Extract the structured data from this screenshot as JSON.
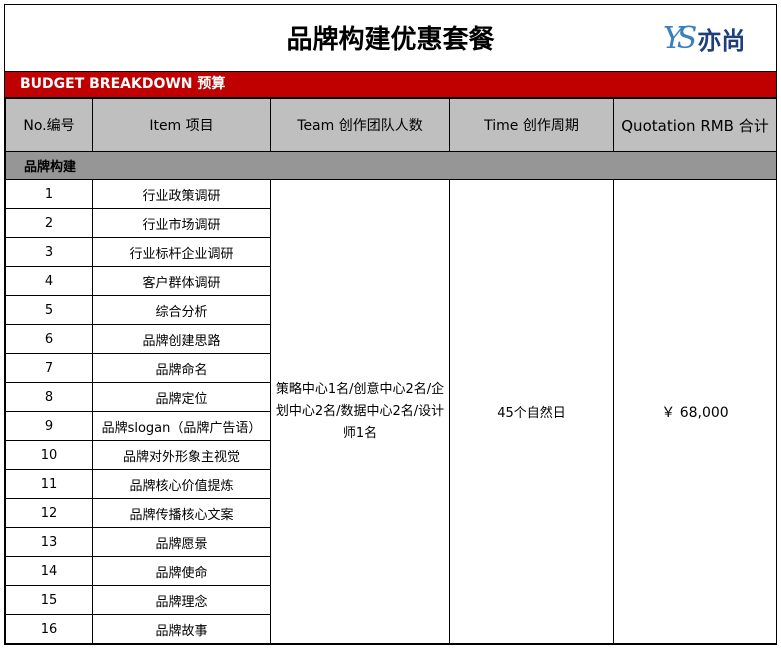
{
  "title": "品牌构建优惠套餐",
  "logo": {
    "mark": "YS",
    "text": "亦尚"
  },
  "band": "BUDGET BREAKDOWN 预算",
  "headers": [
    "No.编号",
    "Item 项目",
    "Team 创作团队人数",
    "Time 创作周期",
    "Quotation RMB 合计"
  ],
  "section": "品牌构建",
  "rows": [
    {
      "no": "1",
      "item": "行业政策调研"
    },
    {
      "no": "2",
      "item": "行业市场调研"
    },
    {
      "no": "3",
      "item": "行业标杆企业调研"
    },
    {
      "no": "4",
      "item": "客户群体调研"
    },
    {
      "no": "5",
      "item": "综合分析"
    },
    {
      "no": "6",
      "item": "品牌创建思路"
    },
    {
      "no": "7",
      "item": "品牌命名"
    },
    {
      "no": "8",
      "item": "品牌定位"
    },
    {
      "no": "9",
      "item": "品牌slogan（品牌广告语）"
    },
    {
      "no": "10",
      "item": "品牌对外形象主视觉"
    },
    {
      "no": "11",
      "item": "品牌核心价值提炼"
    },
    {
      "no": "12",
      "item": "品牌传播核心文案"
    },
    {
      "no": "13",
      "item": "品牌愿景"
    },
    {
      "no": "14",
      "item": "品牌使命"
    },
    {
      "no": "15",
      "item": "品牌理念"
    },
    {
      "no": "16",
      "item": "品牌故事"
    }
  ],
  "team": "策略中心1名/创意中心2名/企划中心2名/数据中心2名/设计师1名",
  "time": "45个自然日",
  "quote": "￥ 68,000",
  "colors": {
    "band": "#c00000",
    "header": "#bfbfbf",
    "section": "#969696"
  }
}
